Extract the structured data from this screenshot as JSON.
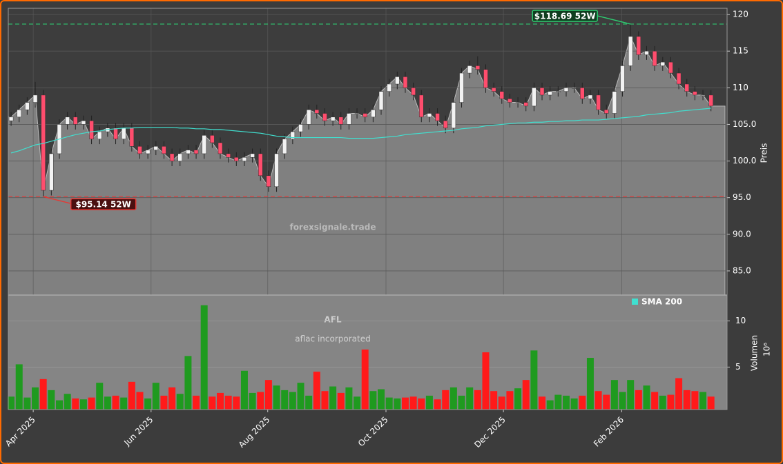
{
  "chart_data": [
    {
      "type": "candlestick",
      "xlim": [
        -0.35,
        89
      ],
      "xticks": [
        {
          "value": 2.75,
          "label": "Apr 2025"
        },
        {
          "value": 17.4,
          "label": "Jun 2025"
        },
        {
          "value": 31.9,
          "label": "Aug 2025"
        },
        {
          "value": 46.6,
          "label": "Oct 2025"
        },
        {
          "value": 61.2,
          "label": "Dec 2025"
        },
        {
          "value": 75.9,
          "label": "Feb 2026"
        }
      ],
      "ylim": [
        81.7,
        120.85
      ],
      "yticks": [
        {
          "value": 85,
          "label": "85.0"
        },
        {
          "value": 90,
          "label": "90.0"
        },
        {
          "value": 95,
          "label": "95.0"
        },
        {
          "value": 100,
          "label": "100.0"
        },
        {
          "value": 105,
          "label": "105.0"
        },
        110,
        115,
        120
      ],
      "ylabel": "Preis",
      "grid": true,
      "area_color": "#808080",
      "up_color": "#f2f2f2",
      "down_color": "#ff4d6d",
      "open": [
        105.5,
        106,
        107,
        108,
        109,
        96,
        101,
        105,
        106,
        105,
        105.5,
        103,
        104,
        104.5,
        103,
        104.5,
        102,
        101,
        101.5,
        102,
        101,
        100,
        101,
        101.5,
        101,
        103.5,
        102.5,
        101,
        100.5,
        100,
        100.5,
        101,
        98,
        96.5,
        101,
        103,
        104,
        105,
        107,
        106.5,
        105.5,
        106,
        105,
        106.5,
        106.5,
        106,
        107,
        109.5,
        110.5,
        111.5,
        110,
        109,
        106,
        106.5,
        105.5,
        104.5,
        108,
        112,
        113,
        112.5,
        110,
        109.5,
        108.5,
        108,
        108,
        107.5,
        110,
        109,
        109.5,
        109.5,
        110,
        110,
        108.5,
        109,
        107,
        106.5,
        109.5,
        113,
        117,
        114.5,
        115,
        113,
        113.5,
        112,
        110.5,
        109.5,
        109,
        109
      ],
      "high": [
        106.7,
        107.7,
        108.7,
        110.8,
        109.7,
        101.7,
        105.7,
        106.7,
        106.7,
        106.2,
        106.2,
        104.7,
        105.2,
        105.2,
        105.2,
        105.2,
        102.7,
        102.2,
        102.7,
        102.7,
        101.7,
        101.7,
        102.2,
        102.2,
        104.2,
        104.2,
        103.2,
        101.7,
        101.2,
        101.2,
        101.7,
        101.7,
        98.7,
        101.7,
        103.7,
        104.7,
        105.7,
        107.7,
        107.7,
        107.2,
        106.7,
        106.7,
        107.2,
        107.2,
        107.2,
        107.7,
        110.2,
        111.2,
        112.2,
        112.2,
        110.7,
        109.7,
        107.2,
        107.2,
        106.2,
        108.7,
        112.7,
        113.7,
        114.3,
        113.2,
        110.7,
        110.2,
        109.2,
        108.7,
        108.7,
        110.7,
        110.7,
        110.2,
        110.2,
        110.7,
        110.7,
        110.7,
        109.7,
        109.7,
        107.7,
        110.2,
        113.7,
        118.69,
        117.7,
        115.7,
        115.7,
        114.2,
        114.2,
        112.7,
        111.2,
        110.2,
        109.7,
        109.7
      ],
      "low": [
        104.8,
        105.3,
        106.3,
        107.3,
        95.14,
        95.3,
        100.3,
        104.3,
        104.3,
        104.3,
        102.3,
        102.3,
        103.3,
        102.3,
        102.3,
        101.3,
        100.3,
        100.3,
        100.8,
        100.3,
        99.3,
        99.3,
        100.3,
        100.3,
        100.3,
        101.8,
        100.3,
        99.8,
        99.3,
        99.3,
        99.8,
        97.3,
        95.8,
        95.8,
        100.3,
        102.3,
        103.3,
        104.3,
        105.8,
        104.8,
        104.8,
        104.3,
        104.3,
        105.8,
        105.3,
        105.3,
        106.3,
        108.8,
        109.8,
        109.3,
        108.3,
        105.3,
        105.3,
        104.8,
        103.8,
        103.8,
        107.3,
        111.3,
        111.8,
        109.3,
        108.8,
        107.8,
        107.3,
        107.3,
        106.8,
        106.8,
        108.3,
        108.3,
        108.8,
        108.8,
        109.3,
        107.8,
        107.8,
        106.3,
        105.8,
        105.8,
        108.8,
        112.3,
        113.8,
        113.8,
        112.3,
        112.3,
        111.3,
        109.8,
        108.8,
        108.3,
        108.3,
        106.8
      ],
      "close": [
        106,
        107,
        108,
        109,
        96,
        101,
        105,
        106,
        105,
        105.5,
        103,
        104,
        104.5,
        103,
        104.5,
        102,
        101,
        101.5,
        102,
        101,
        100,
        101,
        101.5,
        101,
        103.5,
        102.5,
        101,
        100.5,
        100,
        100.5,
        101,
        98,
        96.5,
        101,
        103,
        104,
        105,
        107,
        106.5,
        105.5,
        106,
        105,
        106.5,
        106.5,
        106,
        107,
        109.5,
        110.5,
        111.5,
        110,
        109,
        106,
        106.5,
        105.5,
        104.5,
        108,
        112,
        113,
        112.5,
        110,
        109.5,
        108.5,
        108,
        108,
        107.5,
        110,
        109,
        109.5,
        109.5,
        110,
        110,
        108.5,
        109,
        107,
        106.5,
        109.5,
        113,
        117,
        114.5,
        115,
        113,
        113.5,
        112,
        110.5,
        109.5,
        109,
        109,
        107.5
      ],
      "series": [
        {
          "name": "SMA 200",
          "color": "#40e0d0",
          "values": [
            101.1,
            101.4,
            101.8,
            102.2,
            102.4,
            102.7,
            103.0,
            103.3,
            103.6,
            103.8,
            104.0,
            104.1,
            104.3,
            104.4,
            104.5,
            104.5,
            104.6,
            104.6,
            104.6,
            104.6,
            104.6,
            104.5,
            104.5,
            104.4,
            104.4,
            104.3,
            104.3,
            104.2,
            104.1,
            104.0,
            103.9,
            103.8,
            103.6,
            103.4,
            103.3,
            103.2,
            103.2,
            103.2,
            103.2,
            103.2,
            103.2,
            103.2,
            103.1,
            103.1,
            103.1,
            103.1,
            103.2,
            103.3,
            103.4,
            103.6,
            103.7,
            103.8,
            103.9,
            104.0,
            104.1,
            104.2,
            104.4,
            104.5,
            104.6,
            104.8,
            104.9,
            105.0,
            105.1,
            105.2,
            105.2,
            105.3,
            105.3,
            105.4,
            105.4,
            105.5,
            105.5,
            105.6,
            105.6,
            105.6,
            105.7,
            105.8,
            105.9,
            106.0,
            106.1,
            106.3,
            106.4,
            106.5,
            106.6,
            106.8,
            106.9,
            107.0,
            107.1,
            107.2
          ]
        }
      ],
      "annotations": [
        {
          "text": "$118.69 52W",
          "value": 118.69,
          "color": "#2ecc71"
        },
        {
          "text": "$95.14 52W",
          "value": 95.14,
          "color": "#e53935"
        }
      ],
      "watermarks": [
        "forexsignale.trade",
        "AFL",
        "aflac incorporated"
      ]
    },
    {
      "type": "bar",
      "ylim": [
        0.4,
        12.8
      ],
      "yticks": [
        5,
        10
      ],
      "ylabel": "Volumen",
      "scale_label": "10⁶",
      "up_color": "#1f9a1f",
      "down_color": "#ff1a1a",
      "values": [
        1.8,
        5.3,
        1.7,
        2.8,
        3.7,
        2.5,
        1.4,
        2.1,
        1.6,
        1.5,
        1.7,
        3.3,
        1.8,
        1.9,
        1.7,
        3.4,
        2.3,
        1.6,
        3.3,
        1.9,
        2.8,
        2.1,
        6.2,
        1.9,
        11.7,
        1.8,
        2.2,
        1.9,
        1.8,
        4.6,
        2.2,
        2.3,
        3.6,
        3.0,
        2.5,
        2.3,
        3.3,
        1.9,
        4.5,
        2.4,
        2.9,
        2.2,
        2.8,
        1.8,
        6.9,
        2.4,
        2.6,
        1.7,
        1.6,
        1.7,
        1.8,
        1.6,
        1.9,
        1.5,
        2.5,
        2.8,
        1.9,
        2.8,
        2.5,
        6.6,
        2.4,
        1.8,
        2.4,
        2.7,
        3.6,
        6.8,
        1.8,
        1.4,
        2.0,
        1.9,
        1.6,
        1.9,
        6.0,
        2.4,
        2.0,
        3.6,
        2.3,
        3.6,
        2.5,
        3.0,
        2.3,
        1.9,
        2.0,
        3.8,
        2.5,
        2.4,
        2.3,
        1.8
      ]
    }
  ]
}
